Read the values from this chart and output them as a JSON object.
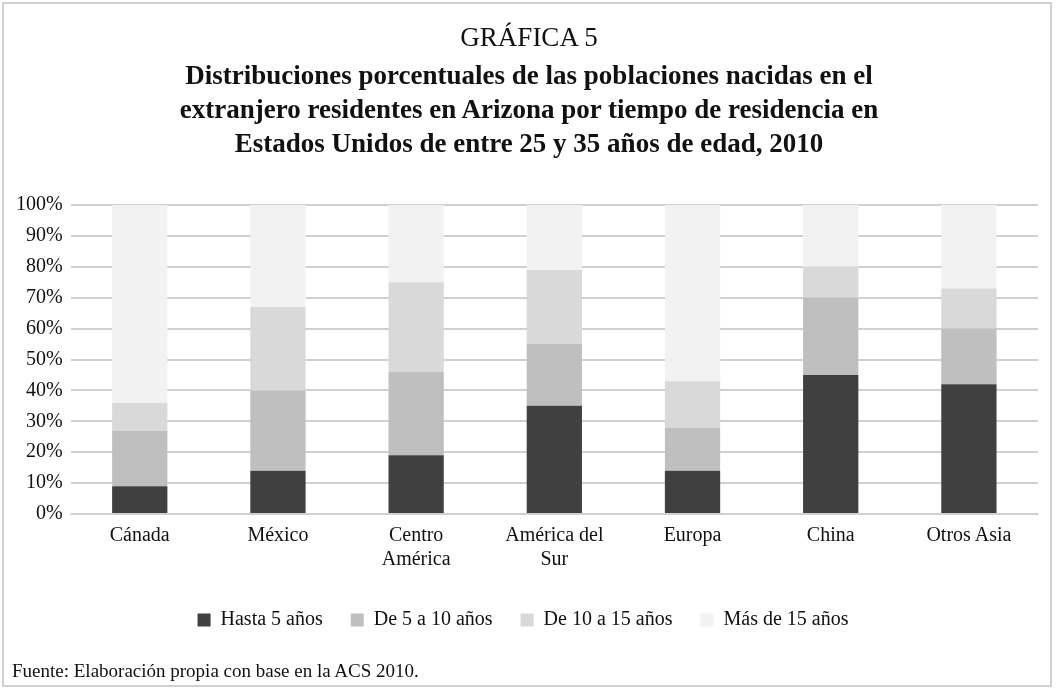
{
  "chart_data": {
    "type": "bar",
    "stacked": true,
    "title": "GRÁFICA 5",
    "subtitle": "Distribuciones porcentuales de las poblaciones nacidas en el extranjero residentes en Arizona por tiempo de residencia en Estados Unidos de entre 25 y 35 años de edad, 2010",
    "categories": [
      "Cánada",
      "México",
      "Centro América",
      "América del Sur",
      "Europa",
      "China",
      "Otros Asia"
    ],
    "series": [
      {
        "name": "Hasta 5 años",
        "color": "#404040",
        "values": [
          9,
          14,
          19,
          35,
          14,
          45,
          42
        ]
      },
      {
        "name": "De 5 a 10 años",
        "color": "#bfbfbf",
        "values": [
          18,
          26,
          27,
          20,
          14,
          25,
          18
        ]
      },
      {
        "name": "De 10 a 15 años",
        "color": "#d9d9d9",
        "values": [
          9,
          27,
          29,
          24,
          15,
          10,
          13
        ]
      },
      {
        "name": "Más de 15 años",
        "color": "#f2f2f2",
        "values": [
          64,
          33,
          25,
          21,
          57,
          20,
          27
        ]
      }
    ],
    "ylim": [
      0,
      100
    ],
    "yticks": [
      {
        "value": 0,
        "label": "0%"
      },
      {
        "value": 10,
        "label": "10%"
      },
      {
        "value": 20,
        "label": "20%"
      },
      {
        "value": 30,
        "label": "30%"
      },
      {
        "value": 40,
        "label": "40%"
      },
      {
        "value": 50,
        "label": "50%"
      },
      {
        "value": 60,
        "label": "60%"
      },
      {
        "value": 70,
        "label": "70%"
      },
      {
        "value": 80,
        "label": "80%"
      },
      {
        "value": 90,
        "label": "90%"
      },
      {
        "value": 100,
        "label": "100%"
      }
    ],
    "grid": "y",
    "legend": "bottom",
    "annotations": [
      "Fuente: Elaboración propia con base en la ACS 2010."
    ]
  }
}
